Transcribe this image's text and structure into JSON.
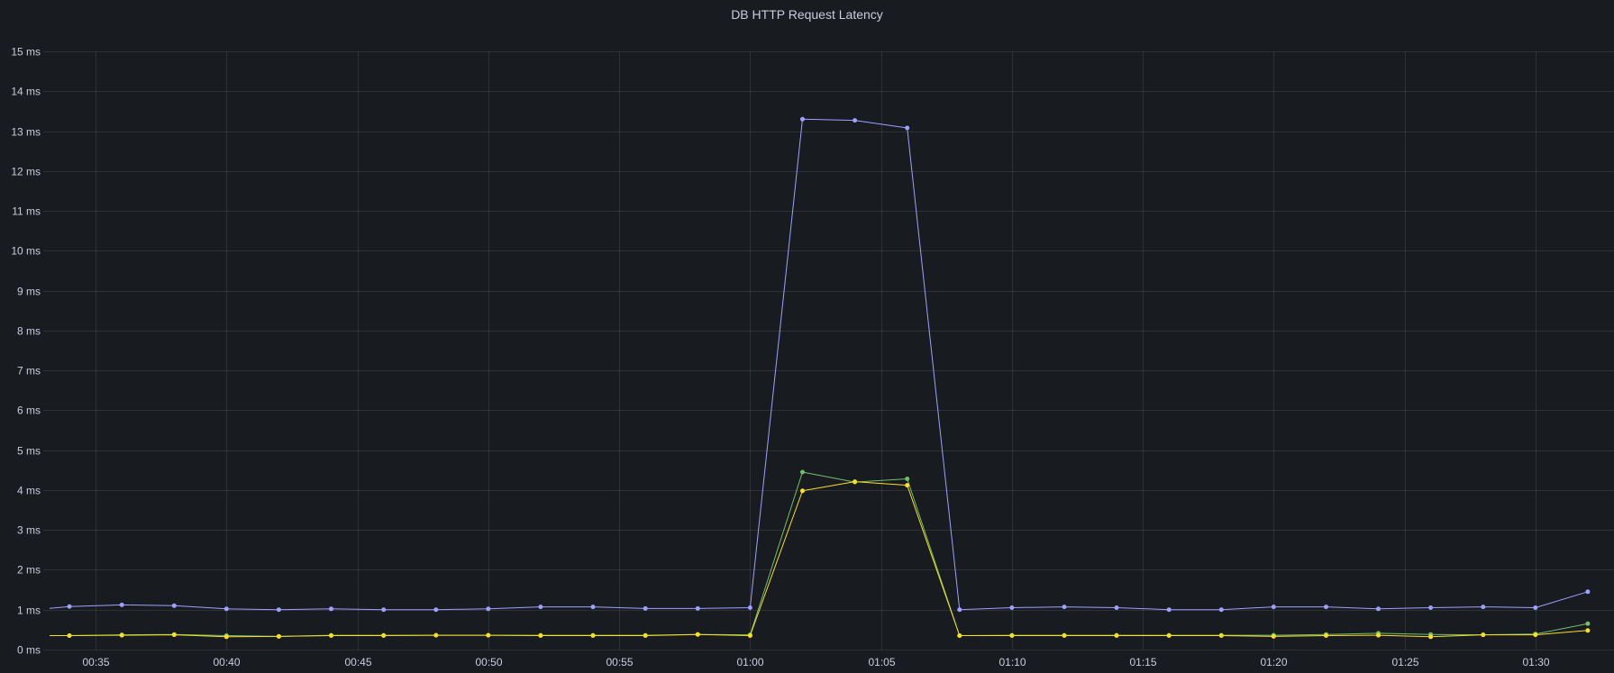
{
  "panel": {
    "title": "DB HTTP Request Latency"
  },
  "chart_data": {
    "type": "line",
    "title": "DB HTTP Request Latency",
    "xlabel": "",
    "ylabel": "",
    "ylim": [
      0,
      15
    ],
    "y_unit": "ms",
    "y_ticks": [
      "0 ms",
      "1 ms",
      "2 ms",
      "3 ms",
      "4 ms",
      "5 ms",
      "6 ms",
      "7 ms",
      "8 ms",
      "9 ms",
      "10 ms",
      "11 ms",
      "12 ms",
      "13 ms",
      "14 ms",
      "15 ms"
    ],
    "xlim": [
      "00:33",
      "01:33"
    ],
    "x_ticks": [
      "00:35",
      "00:40",
      "00:45",
      "00:50",
      "00:55",
      "01:00",
      "01:05",
      "01:10",
      "01:15",
      "01:20",
      "01:25",
      "01:30"
    ],
    "grid": true,
    "legend": "none",
    "x": [
      "00:34",
      "00:36",
      "00:38",
      "00:40",
      "00:42",
      "00:44",
      "00:46",
      "00:48",
      "00:50",
      "00:52",
      "00:54",
      "00:56",
      "00:58",
      "01:00",
      "01:02",
      "01:04",
      "01:06",
      "01:08",
      "01:10",
      "01:12",
      "01:14",
      "01:16",
      "01:18",
      "01:20",
      "01:22",
      "01:24",
      "01:26",
      "01:28",
      "01:30",
      "01:32"
    ],
    "series": [
      {
        "color": "#a0a0ff",
        "values": [
          1.08,
          1.12,
          1.1,
          1.02,
          1.0,
          1.02,
          1.0,
          1.0,
          1.02,
          1.07,
          1.07,
          1.03,
          1.03,
          1.05,
          13.3,
          13.27,
          13.08,
          1.0,
          1.05,
          1.07,
          1.05,
          1.0,
          1.0,
          1.07,
          1.07,
          1.02,
          1.05,
          1.07,
          1.05,
          1.45
        ]
      },
      {
        "color": "#73bf69",
        "values": [
          0.35,
          0.37,
          0.38,
          0.35,
          0.33,
          0.36,
          0.36,
          0.36,
          0.36,
          0.36,
          0.36,
          0.36,
          0.38,
          0.37,
          4.45,
          4.2,
          4.28,
          0.35,
          0.36,
          0.36,
          0.36,
          0.36,
          0.36,
          0.36,
          0.38,
          0.41,
          0.38,
          0.37,
          0.39,
          0.65
        ]
      },
      {
        "color": "#fade2a",
        "values": [
          0.35,
          0.36,
          0.37,
          0.32,
          0.33,
          0.35,
          0.35,
          0.36,
          0.36,
          0.35,
          0.35,
          0.35,
          0.38,
          0.35,
          3.98,
          4.21,
          4.12,
          0.35,
          0.35,
          0.35,
          0.35,
          0.35,
          0.35,
          0.33,
          0.35,
          0.36,
          0.32,
          0.37,
          0.37,
          0.48
        ]
      }
    ]
  }
}
